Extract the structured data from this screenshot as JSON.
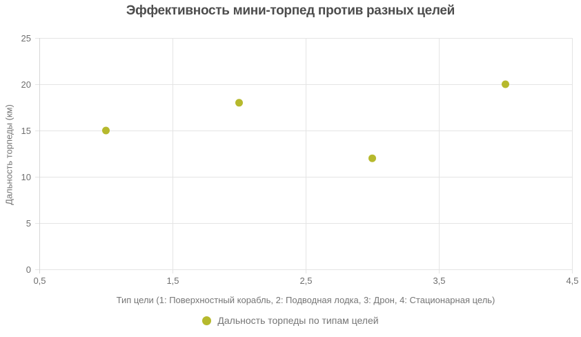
{
  "chart_data": {
    "type": "scatter",
    "title": "Эффективность мини-торпед против разных целей",
    "xlabel": "Тип цели (1: Поверхностный корабль, 2: Подводная лодка, 3: Дрон, 4: Стационарная цель)",
    "ylabel": "Дальность торпеды (км)",
    "xlim": [
      0.5,
      4.5
    ],
    "ylim": [
      0,
      25
    ],
    "grid": true,
    "legend_position": "bottom",
    "x_ticks": [
      {
        "value": 0.5,
        "label": "0,5"
      },
      {
        "value": 1.5,
        "label": "1,5"
      },
      {
        "value": 2.5,
        "label": "2,5"
      },
      {
        "value": 3.5,
        "label": "3,5"
      },
      {
        "value": 4.5,
        "label": "4,5"
      }
    ],
    "y_ticks": [
      {
        "value": 0,
        "label": "0"
      },
      {
        "value": 5,
        "label": "5"
      },
      {
        "value": 10,
        "label": "10"
      },
      {
        "value": 15,
        "label": "15"
      },
      {
        "value": 20,
        "label": "20"
      },
      {
        "value": 25,
        "label": "25"
      }
    ],
    "series": [
      {
        "name": "Дальность торпеды по типам целей",
        "color": "#b6b92d",
        "points": [
          {
            "x": 1,
            "y": 15
          },
          {
            "x": 2,
            "y": 18
          },
          {
            "x": 3,
            "y": 12
          },
          {
            "x": 4,
            "y": 20
          }
        ]
      }
    ]
  },
  "colors": {
    "point": "#b6b92d",
    "grid": "#e4e4e4",
    "axis": "#d6d6d6",
    "title": "#4d4d4d",
    "tick_label": "#6e6e6e",
    "axis_label": "#757575"
  }
}
